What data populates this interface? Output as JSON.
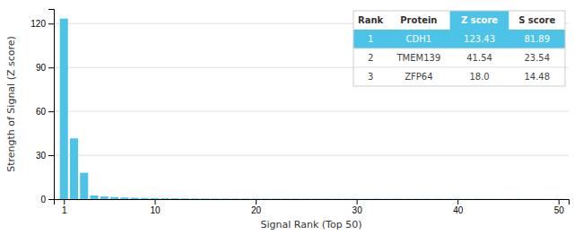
{
  "chart_data": {
    "type": "bar",
    "xlabel": "Signal Rank (Top 50)",
    "ylabel": "Strength of Signal (Z score)",
    "x": [
      1,
      2,
      3,
      4,
      5,
      6,
      7,
      8,
      9,
      10,
      11,
      12,
      13,
      14,
      15,
      16,
      17,
      18,
      19,
      20,
      21,
      22,
      23,
      24,
      25,
      26,
      27,
      28,
      29,
      30,
      31,
      32,
      33,
      34,
      35,
      36,
      37,
      38,
      39,
      40,
      41,
      42,
      43,
      44,
      45,
      46,
      47,
      48,
      49,
      50
    ],
    "values": [
      123.43,
      41.54,
      18.0,
      2.5,
      1.8,
      1.4,
      1.1,
      0.9,
      0.75,
      0.65,
      0.58,
      0.52,
      0.47,
      0.43,
      0.4,
      0.37,
      0.35,
      0.33,
      0.31,
      0.29,
      0.28,
      0.27,
      0.26,
      0.25,
      0.24,
      0.23,
      0.22,
      0.21,
      0.2,
      0.19,
      0.18,
      0.18,
      0.17,
      0.17,
      0.16,
      0.16,
      0.15,
      0.15,
      0.14,
      0.14,
      0.13,
      0.13,
      0.12,
      0.12,
      0.11,
      0.11,
      0.1,
      0.1,
      0.09,
      0.09
    ],
    "color": "#4DC3E8",
    "xlim": [
      0,
      51
    ],
    "xticks": [
      1,
      10,
      20,
      30,
      40,
      50
    ],
    "ylim": [
      0,
      130
    ],
    "yticks": [
      0,
      30,
      60,
      90,
      120
    ],
    "grid": true,
    "table": {
      "columns": [
        "Rank",
        "Protein",
        "Z score",
        "S score"
      ],
      "rows": [
        [
          "1",
          "CDH1",
          "123.43",
          "81.89"
        ],
        [
          "2",
          "TMEM139",
          "41.54",
          "23.54"
        ],
        [
          "3",
          "ZFP64",
          "18.0",
          "14.48"
        ]
      ]
    }
  }
}
